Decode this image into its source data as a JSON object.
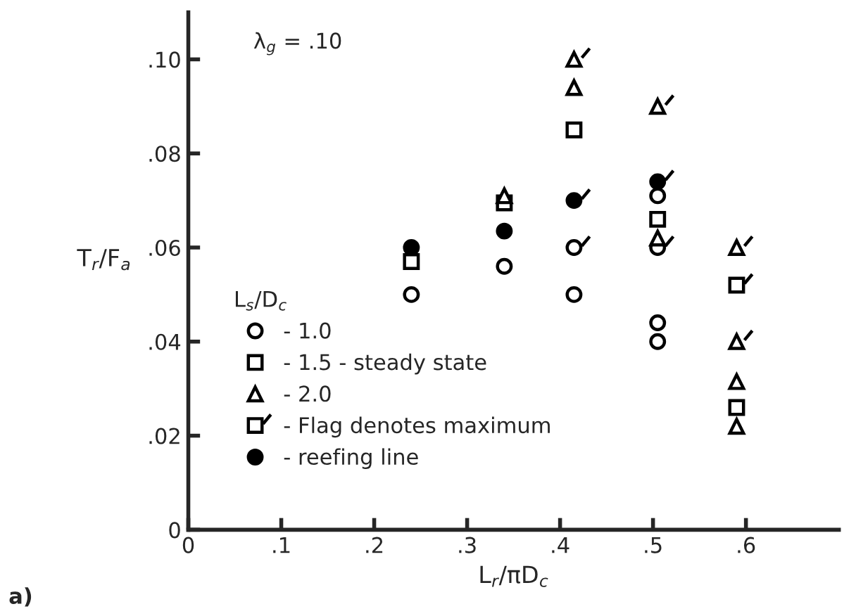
{
  "chart_data": {
    "type": "scatter",
    "xlabel": "L$_{r}$/πD$_{c}$",
    "ylabel": "T$_{r}$/F$_{a}$",
    "legend_title": "L$_{s}$/D$_{c}$",
    "legend": "bottom left",
    "grid": false,
    "xlim": [
      0,
      0.7
    ],
    "ylim": [
      0,
      0.11
    ],
    "xticks": [
      {
        "value": 0,
        "label": "0"
      },
      {
        "value": 0.1,
        "label": ".1"
      },
      {
        "value": 0.2,
        "label": ".2"
      },
      {
        "value": 0.3,
        "label": ".3"
      },
      {
        "value": 0.4,
        "label": ".4"
      },
      {
        "value": 0.5,
        "label": ".5"
      },
      {
        "value": 0.6,
        "label": ".6"
      }
    ],
    "yticks": [
      {
        "value": 0,
        "label": "0"
      },
      {
        "value": 0.02,
        "label": ".02"
      },
      {
        "value": 0.04,
        "label": ".04"
      },
      {
        "value": 0.06,
        "label": ".06"
      },
      {
        "value": 0.08,
        "label": ".08"
      },
      {
        "value": 0.1,
        "label": ".10"
      }
    ],
    "annotations": [
      {
        "text": "λ$_{g}$ = .10"
      },
      {
        "text": "a)"
      }
    ],
    "series": [
      {
        "name": "- 1.0",
        "color": "#000000",
        "marker": "circle",
        "x": [
          0.24,
          0.34,
          0.415,
          0.505,
          0.505,
          0.505
        ],
        "values": [
          0.05,
          0.056,
          0.05,
          0.071,
          0.044,
          0.04
        ]
      },
      {
        "name": "- 1.5 - steady state",
        "color": "#000000",
        "marker": "square",
        "x": [
          0.24,
          0.34,
          0.415,
          0.505,
          0.59
        ],
        "values": [
          0.057,
          0.0695,
          0.085,
          0.066,
          0.026
        ]
      },
      {
        "name": "- 2.0",
        "color": "#000000",
        "marker": "triangle",
        "x": [
          0.34,
          0.415,
          0.505,
          0.59,
          0.59
        ],
        "values": [
          0.071,
          0.094,
          0.062,
          0.0315,
          0.022
        ]
      },
      {
        "name": "- Flag denotes maximum",
        "color": "#000000",
        "marker": "square",
        "x": [
          0.59
        ],
        "values": [
          0.052
        ]
      },
      {
        "color": "#000000",
        "marker": "triangle",
        "x": [
          0.415,
          0.505,
          0.59,
          0.59
        ],
        "values": [
          0.1,
          0.09,
          0.06,
          0.04
        ]
      },
      {
        "color": "#000000",
        "marker": "circle",
        "x": [
          0.415,
          0.505
        ],
        "values": [
          0.06,
          0.06
        ]
      },
      {
        "color": "#000000",
        "marker": "circle",
        "x": [
          0.415,
          0.505
        ],
        "values": [
          0.07,
          0.074
        ]
      },
      {
        "name": "- reefing line",
        "color": "#000000",
        "marker": "circle",
        "x": [
          0.24,
          0.34
        ],
        "values": [
          0.06,
          0.0635
        ]
      }
    ]
  }
}
